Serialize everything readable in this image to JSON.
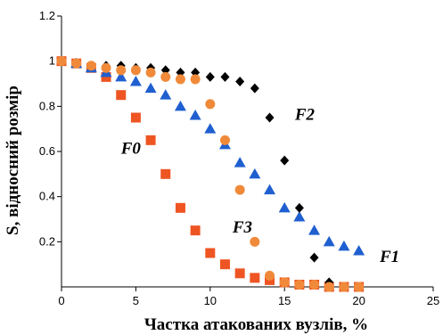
{
  "chart_data": {
    "type": "scatter",
    "title": "",
    "xlabel": "Частка атакованих вузлів, %",
    "ylabel": "S, відносний розмір",
    "xlim": [
      0,
      25
    ],
    "ylim": [
      0,
      1.2
    ],
    "x_ticks": [
      0,
      5,
      10,
      15,
      20,
      25
    ],
    "y_ticks": [
      0.2,
      0.4,
      0.6,
      0.8,
      1,
      1.2
    ],
    "y_tick_labels": [
      "0.2",
      "0.4",
      "0.6",
      "0.8",
      "1",
      "1.2"
    ],
    "grid": false,
    "series": [
      {
        "name": "F0",
        "marker": "square",
        "color": "#EE5522",
        "x": [
          0,
          1,
          2,
          3,
          4,
          5,
          6,
          7,
          8,
          9,
          10,
          11,
          12,
          13,
          14,
          15,
          16,
          17,
          18,
          19,
          20
        ],
        "y": [
          1.0,
          0.99,
          0.97,
          0.93,
          0.85,
          0.75,
          0.65,
          0.5,
          0.35,
          0.25,
          0.15,
          0.1,
          0.06,
          0.04,
          0.03,
          0.02,
          0.01,
          0.01,
          0.0,
          0.0,
          0.0
        ]
      },
      {
        "name": "F1",
        "marker": "triangle",
        "color": "#1F5FD0",
        "x": [
          1,
          2,
          3,
          4,
          5,
          6,
          7,
          8,
          9,
          10,
          11,
          12,
          13,
          14,
          15,
          16,
          17,
          18,
          19,
          20
        ],
        "y": [
          0.99,
          0.97,
          0.95,
          0.93,
          0.91,
          0.88,
          0.85,
          0.8,
          0.76,
          0.7,
          0.63,
          0.55,
          0.5,
          0.43,
          0.35,
          0.31,
          0.25,
          0.2,
          0.18,
          0.16
        ]
      },
      {
        "name": "F2",
        "marker": "diamond",
        "color": "#000000",
        "x": [
          0,
          1,
          2,
          3,
          4,
          5,
          6,
          7,
          8,
          9,
          10,
          11,
          12,
          13,
          14,
          15,
          16,
          17,
          18,
          19,
          20
        ],
        "y": [
          1.0,
          0.99,
          0.98,
          0.98,
          0.98,
          0.97,
          0.97,
          0.96,
          0.95,
          0.95,
          0.93,
          0.93,
          0.91,
          0.88,
          0.75,
          0.56,
          0.35,
          0.13,
          0.02,
          0.0,
          0.0
        ]
      },
      {
        "name": "F3",
        "marker": "circle",
        "color": "#F08A3A",
        "x": [
          0,
          1,
          2,
          3,
          4,
          5,
          6,
          7,
          8,
          9,
          10,
          11,
          12,
          13,
          14,
          15,
          16,
          17,
          18,
          19,
          20
        ],
        "y": [
          1.0,
          0.99,
          0.98,
          0.97,
          0.96,
          0.96,
          0.95,
          0.93,
          0.92,
          0.92,
          0.81,
          0.65,
          0.43,
          0.2,
          0.05,
          0.02,
          0.01,
          0.01,
          0.0,
          0.0,
          0.0
        ]
      }
    ],
    "annotations": [
      {
        "text": "F0",
        "x": 4.0,
        "y": 0.59
      },
      {
        "text": "F1",
        "x": 21.4,
        "y": 0.11
      },
      {
        "text": "F2",
        "x": 15.7,
        "y": 0.74
      },
      {
        "text": "F3",
        "x": 11.5,
        "y": 0.24
      }
    ]
  }
}
